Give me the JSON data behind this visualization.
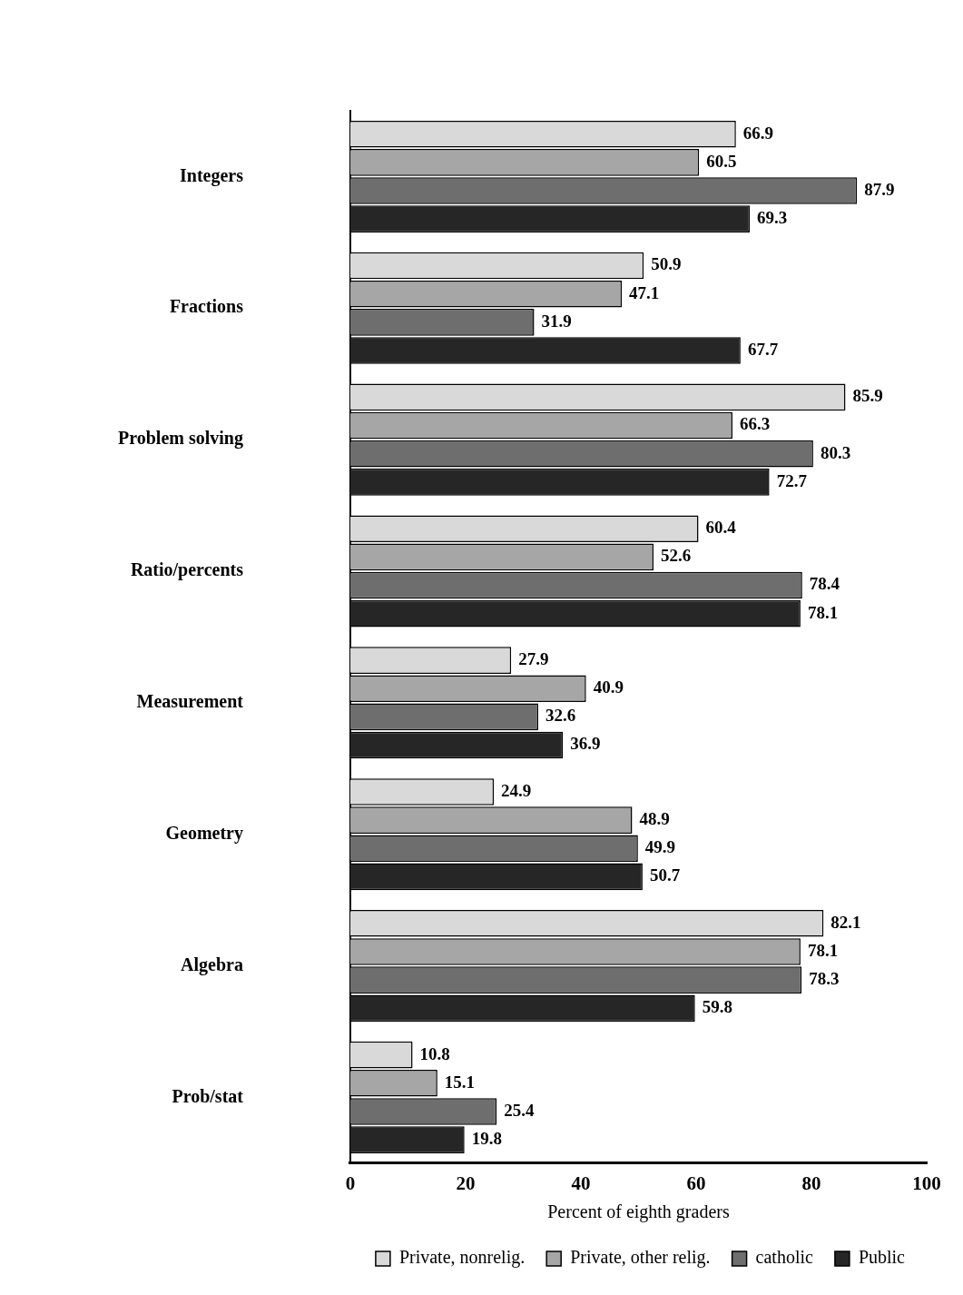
{
  "chart_data": {
    "type": "bar",
    "orientation": "horizontal",
    "xlabel": "Percent of eighth graders",
    "categories": [
      "Integers",
      "Fractions",
      "Problem solving",
      "Ratio/percents",
      "Measurement",
      "Geometry",
      "Algebra",
      "Prob/stat"
    ],
    "series": [
      {
        "name": "Private, nonrelig.",
        "color": "#d9d9d9",
        "values": [
          66.9,
          50.9,
          85.9,
          60.4,
          27.9,
          24.9,
          82.1,
          10.8
        ]
      },
      {
        "name": "Private, other relig.",
        "color": "#a6a6a6",
        "values": [
          60.5,
          47.1,
          66.3,
          52.6,
          40.9,
          48.9,
          78.1,
          15.1
        ]
      },
      {
        "name": "catholic",
        "color": "#6e6e6e",
        "values": [
          87.9,
          31.9,
          80.3,
          78.4,
          32.6,
          49.9,
          78.3,
          25.4
        ]
      },
      {
        "name": "Public",
        "color": "#262626",
        "values": [
          69.3,
          67.7,
          72.7,
          78.1,
          36.9,
          50.7,
          59.8,
          19.8
        ]
      }
    ],
    "xlim": [
      0,
      100
    ],
    "xticks": [
      0,
      20,
      40,
      60,
      80,
      100
    ],
    "data_labels": true,
    "legend": "bottom",
    "grid": false
  }
}
